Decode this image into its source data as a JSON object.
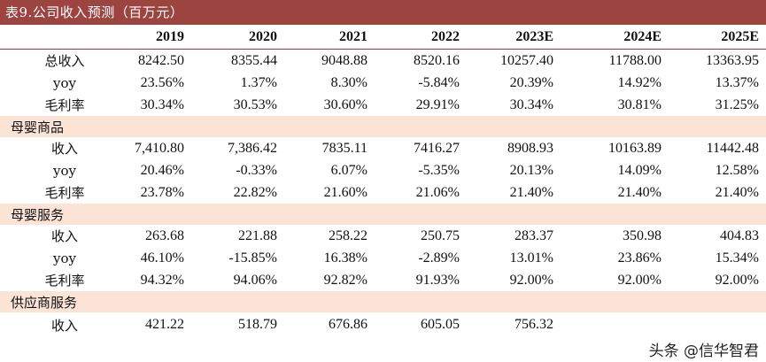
{
  "title": "表9.公司收入预测（百万元）",
  "columns": [
    "",
    "2019",
    "2020",
    "2021",
    "2022",
    "2023E",
    "2024E",
    "2025E"
  ],
  "rows": [
    {
      "kind": "data",
      "label": "总收入",
      "values": [
        "8242.50",
        "8355.44",
        "9048.88",
        "8520.16",
        "10257.40",
        "11788.00",
        "13363.95"
      ]
    },
    {
      "kind": "data",
      "label": "yoy",
      "values": [
        "23.56%",
        "1.37%",
        "8.30%",
        "-5.84%",
        "20.39%",
        "14.92%",
        "13.37%"
      ]
    },
    {
      "kind": "data",
      "label": "毛利率",
      "values": [
        "30.34%",
        "30.53%",
        "30.60%",
        "29.91%",
        "30.34%",
        "30.81%",
        "31.25%"
      ]
    },
    {
      "kind": "section",
      "label": "母婴商品"
    },
    {
      "kind": "data",
      "label": "收入",
      "values": [
        "7,410.80",
        "7,386.42",
        "7835.11",
        "7416.27",
        "8908.93",
        "10163.89",
        "11442.48"
      ]
    },
    {
      "kind": "data",
      "label": "yoy",
      "values": [
        "20.46%",
        "-0.33%",
        "6.07%",
        "-5.35%",
        "20.13%",
        "14.09%",
        "12.58%"
      ]
    },
    {
      "kind": "data",
      "label": "毛利率",
      "values": [
        "23.78%",
        "22.82%",
        "21.60%",
        "21.06%",
        "21.40%",
        "21.40%",
        "21.40%"
      ]
    },
    {
      "kind": "section",
      "label": "母婴服务"
    },
    {
      "kind": "data",
      "label": "收入",
      "values": [
        "263.68",
        "221.88",
        "258.22",
        "250.75",
        "283.37",
        "350.98",
        "404.83"
      ]
    },
    {
      "kind": "data",
      "label": "yoy",
      "values": [
        "46.10%",
        "-15.85%",
        "16.38%",
        "-2.89%",
        "13.01%",
        "23.86%",
        "15.34%"
      ]
    },
    {
      "kind": "data",
      "label": "毛利率",
      "values": [
        "94.32%",
        "94.06%",
        "92.82%",
        "91.93%",
        "92.00%",
        "92.00%",
        "92.00%"
      ]
    },
    {
      "kind": "section",
      "label": "供应商服务"
    },
    {
      "kind": "data",
      "label": "收入",
      "values": [
        "421.22",
        "518.79",
        "676.86",
        "605.05",
        "756.32",
        "",
        ""
      ]
    }
  ],
  "watermark": "头条 @信华智君"
}
